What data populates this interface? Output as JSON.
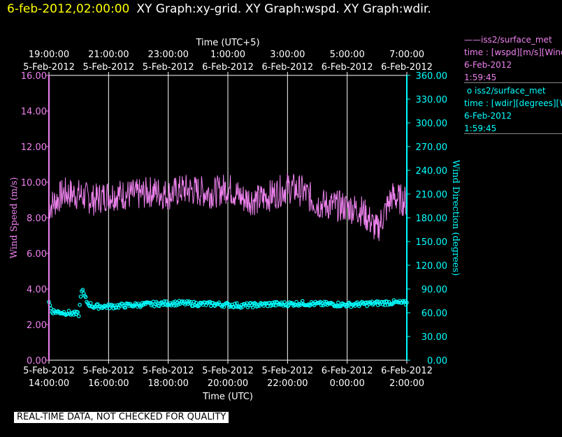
{
  "header": {
    "datetime": "6-feb-2012,02:00:00",
    "titles": "XY Graph:xy-grid.  XY Graph:wspd.  XY Graph:wdir."
  },
  "notice": "REAL-TIME DATA, NOT CHECKED FOR QUALITY",
  "legend": [
    {
      "name": "iss2/surface_met",
      "symbol": "line",
      "desc": "time : [wspd][m/s][Wind",
      "date": "6-Feb-2012",
      "time": "1:59:45",
      "color": "#ee82ee"
    },
    {
      "name": "iss2/surface_met",
      "symbol": "circle",
      "desc": "time : [wdir][degrees][W",
      "date": "6-Feb-2012",
      "time": "1:59:45",
      "color": "#00ffff"
    }
  ],
  "chart_data": {
    "type": "line",
    "top_axis": {
      "label": "Time (UTC+5)",
      "ticks": [
        [
          "19:00:00",
          "5-Feb-2012"
        ],
        [
          "21:00:00",
          "5-Feb-2012"
        ],
        [
          "23:00:00",
          "5-Feb-2012"
        ],
        [
          "1:00:00",
          "6-Feb-2012"
        ],
        [
          "3:00:00",
          "6-Feb-2012"
        ],
        [
          "5:00:00",
          "6-Feb-2012"
        ],
        [
          "7:00:00",
          "6-Feb-2012"
        ]
      ]
    },
    "x_axis": {
      "label": "Time (UTC)",
      "range": [
        "5-Feb-2012 14:00:00",
        "6-Feb-2012 02:00:00"
      ],
      "ticks": [
        [
          "5-Feb-2012",
          "14:00:00"
        ],
        [
          "5-Feb-2012",
          "16:00:00"
        ],
        [
          "5-Feb-2012",
          "18:00:00"
        ],
        [
          "5-Feb-2012",
          "20:00:00"
        ],
        [
          "5-Feb-2012",
          "22:00:00"
        ],
        [
          "6-Feb-2012",
          "0:00:00"
        ],
        [
          "6-Feb-2012",
          "2:00:00"
        ]
      ]
    },
    "y_left": {
      "label": "Wind Speed (m/s)",
      "range": [
        0,
        16
      ],
      "ticks": [
        "0.00",
        "2.00",
        "4.00",
        "6.00",
        "8.00",
        "10.00",
        "12.00",
        "14.00",
        "16.00"
      ],
      "color": "#ee82ee"
    },
    "y_right": {
      "label": "Wind Direction (degrees)",
      "range": [
        0,
        360
      ],
      "ticks": [
        "0.00",
        "30.00",
        "60.00",
        "90.00",
        "120.00",
        "150.00",
        "180.00",
        "210.00",
        "240.00",
        "270.00",
        "300.00",
        "330.00",
        "360.00"
      ],
      "color": "#00ffff"
    },
    "grid": "vertical",
    "series": [
      {
        "name": "iss2/surface_met",
        "axis": "left",
        "style": "line",
        "color": "#ee82ee",
        "x_hours_utc_from_14": [
          0,
          0.5,
          1,
          1.5,
          2,
          2.5,
          3,
          3.5,
          4,
          4.5,
          5,
          5.5,
          6,
          6.5,
          7,
          7.5,
          8,
          8.5,
          9,
          9.5,
          10,
          10.5,
          11,
          11.5,
          12
        ],
        "values": [
          8.6,
          9.4,
          9.3,
          9.0,
          9.3,
          9.3,
          9.3,
          9.5,
          9.3,
          9.6,
          9.5,
          9.4,
          9.7,
          9.1,
          9.0,
          9.3,
          9.7,
          9.5,
          8.8,
          8.7,
          8.6,
          8.4,
          7.3,
          9.2,
          8.9
        ],
        "noise": 0.9
      },
      {
        "name": "iss2/surface_met",
        "axis": "right",
        "style": "markers",
        "color": "#00ffff",
        "x_hours_utc_from_14": [
          0,
          0.1,
          0.3,
          0.6,
          1.0,
          1.1,
          1.2,
          1.3,
          1.5,
          2,
          2.5,
          3,
          3.5,
          4,
          4.5,
          5,
          5.5,
          6,
          6.5,
          7,
          7.5,
          8,
          8.5,
          9,
          9.5,
          10,
          10.5,
          11,
          11.5,
          12
        ],
        "values": [
          73,
          62,
          61,
          60,
          58,
          90,
          80,
          72,
          68,
          68,
          69,
          70,
          71,
          72,
          72,
          71,
          71,
          70,
          69,
          70,
          71,
          71,
          72,
          71,
          71,
          70,
          71,
          72,
          73,
          72
        ],
        "noise": 3
      }
    ]
  }
}
